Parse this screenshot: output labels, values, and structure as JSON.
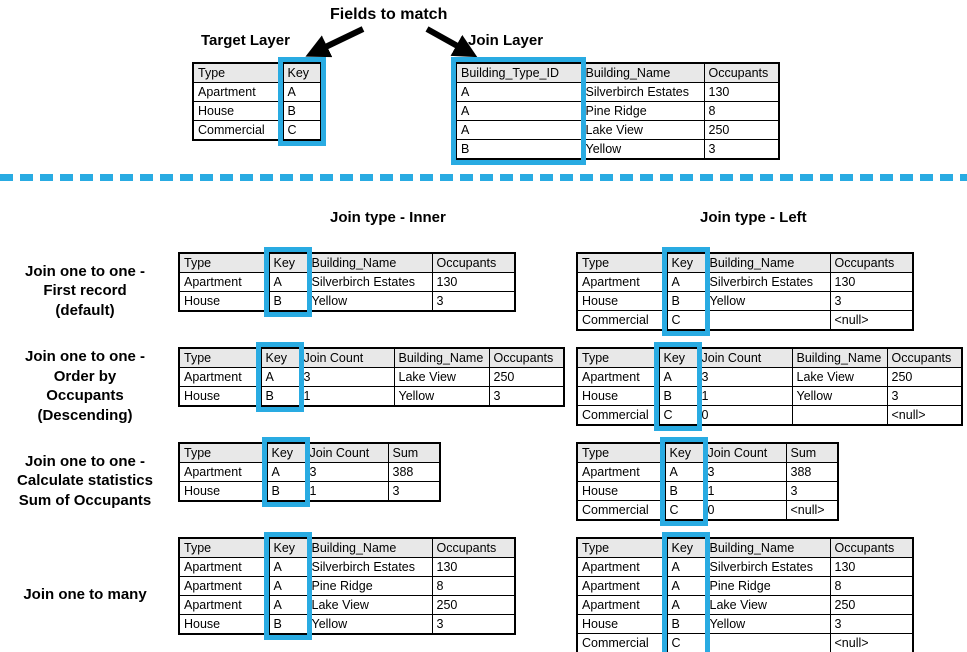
{
  "colors": {
    "highlight": "#29abe2",
    "divider": "#29abe2",
    "table_header_bg": "#e8e8e8",
    "arrow": "#000000"
  },
  "top": {
    "fields_to_match_label": "Fields to match",
    "target_layer": {
      "title": "Target Layer",
      "table": {
        "columns": [
          "Type",
          "Key"
        ],
        "widths": [
          90,
          38
        ],
        "highlight_col": 1,
        "rows": [
          [
            "Apartment",
            "A"
          ],
          [
            "House",
            "B"
          ],
          [
            "Commercial",
            "C"
          ]
        ]
      }
    },
    "join_layer": {
      "title": "Join Layer",
      "table": {
        "columns": [
          "Building_Type_ID",
          "Building_Name",
          "Occupants"
        ],
        "widths": [
          125,
          123,
          75
        ],
        "highlight_col": 0,
        "rows": [
          [
            "A",
            "Silverbirch Estates",
            "130"
          ],
          [
            "A",
            "Pine Ridge",
            "8"
          ],
          [
            "A",
            "Lake View",
            "250"
          ],
          [
            "B",
            "Yellow",
            "3"
          ]
        ]
      }
    }
  },
  "bottom": {
    "inner_heading": "Join type - Inner",
    "left_heading": "Join type - Left",
    "groups": [
      {
        "label_lines": [
          "Join one to one -",
          "First record",
          "(default)"
        ],
        "inner": {
          "columns": [
            "Type",
            "Key",
            "Building_Name",
            "Occupants"
          ],
          "widths": [
            90,
            38,
            125,
            83
          ],
          "highlight_col": 1,
          "rows": [
            [
              "Apartment",
              "A",
              "Silverbirch Estates",
              "130"
            ],
            [
              "House",
              "B",
              "Yellow",
              "3"
            ]
          ]
        },
        "left": {
          "columns": [
            "Type",
            "Key",
            "Building_Name",
            "Occupants"
          ],
          "widths": [
            90,
            38,
            125,
            83
          ],
          "highlight_col": 1,
          "rows": [
            [
              "Apartment",
              "A",
              "Silverbirch Estates",
              "130"
            ],
            [
              "House",
              "B",
              "Yellow",
              "3"
            ],
            [
              "Commercial",
              "C",
              "",
              "<null>"
            ]
          ]
        }
      },
      {
        "label_lines": [
          "Join one to one -",
          "Order by",
          "Occupants",
          "(Descending)"
        ],
        "inner": {
          "columns": [
            "Type",
            "Key",
            "Join Count",
            "Building_Name",
            "Occupants"
          ],
          "widths": [
            82,
            38,
            95,
            95,
            75
          ],
          "highlight_col": 1,
          "rows": [
            [
              "Apartment",
              "A",
              "3",
              "Lake View",
              "250"
            ],
            [
              "House",
              "B",
              "1",
              "Yellow",
              "3"
            ]
          ]
        },
        "left": {
          "columns": [
            "Type",
            "Key",
            "Join Count",
            "Building_Name",
            "Occupants"
          ],
          "widths": [
            82,
            38,
            95,
            95,
            75
          ],
          "highlight_col": 1,
          "rows": [
            [
              "Apartment",
              "A",
              "3",
              "Lake View",
              "250"
            ],
            [
              "House",
              "B",
              "1",
              "Yellow",
              "3"
            ],
            [
              "Commercial",
              "C",
              "0",
              "",
              "<null>"
            ]
          ]
        }
      },
      {
        "label_lines": [
          "Join one to one -",
          "Calculate statistics",
          "Sum of Occupants"
        ],
        "inner": {
          "columns": [
            "Type",
            "Key",
            "Join Count",
            "Sum"
          ],
          "widths": [
            88,
            38,
            83,
            52
          ],
          "highlight_col": 1,
          "rows": [
            [
              "Apartment",
              "A",
              "3",
              "388"
            ],
            [
              "House",
              "B",
              "1",
              "3"
            ]
          ]
        },
        "left": {
          "columns": [
            "Type",
            "Key",
            "Join Count",
            "Sum"
          ],
          "widths": [
            88,
            38,
            83,
            52
          ],
          "highlight_col": 1,
          "rows": [
            [
              "Apartment",
              "A",
              "3",
              "388"
            ],
            [
              "House",
              "B",
              "1",
              "3"
            ],
            [
              "Commercial",
              "C",
              "0",
              "<null>"
            ]
          ]
        }
      },
      {
        "label_lines": [
          "Join one to many"
        ],
        "inner": {
          "columns": [
            "Type",
            "Key",
            "Building_Name",
            "Occupants"
          ],
          "widths": [
            90,
            38,
            125,
            83
          ],
          "highlight_col": 1,
          "rows": [
            [
              "Apartment",
              "A",
              "Silverbirch Estates",
              "130"
            ],
            [
              "Apartment",
              "A",
              "Pine Ridge",
              "8"
            ],
            [
              "Apartment",
              "A",
              "Lake View",
              "250"
            ],
            [
              "House",
              "B",
              "Yellow",
              "3"
            ]
          ]
        },
        "left": {
          "columns": [
            "Type",
            "Key",
            "Building_Name",
            "Occupants"
          ],
          "widths": [
            90,
            38,
            125,
            83
          ],
          "highlight_col": 1,
          "rows": [
            [
              "Apartment",
              "A",
              "Silverbirch Estates",
              "130"
            ],
            [
              "Apartment",
              "A",
              "Pine Ridge",
              "8"
            ],
            [
              "Apartment",
              "A",
              "Lake View",
              "250"
            ],
            [
              "House",
              "B",
              "Yellow",
              "3"
            ],
            [
              "Commercial",
              "C",
              "",
              "<null>"
            ]
          ]
        }
      }
    ]
  }
}
